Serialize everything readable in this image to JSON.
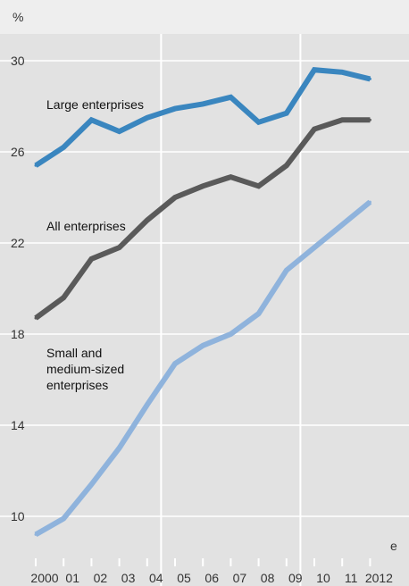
{
  "chart_data": {
    "type": "line",
    "ylabel": "%",
    "categories": [
      "2000",
      "01",
      "02",
      "03",
      "04",
      "05",
      "06",
      "07",
      "08",
      "09",
      "10",
      "11",
      "2012"
    ],
    "ylim": [
      9,
      31
    ],
    "yticks": [
      10,
      14,
      18,
      22,
      26,
      30
    ],
    "grid": {
      "horizontal": true,
      "vertical_at": [
        "04",
        "09"
      ]
    },
    "annotation": {
      "text": "e",
      "category": "2012"
    },
    "series": [
      {
        "name": "Large enterprises",
        "color": "#3a86bf",
        "values": [
          25.4,
          26.2,
          27.4,
          26.9,
          27.5,
          27.9,
          28.1,
          28.4,
          27.3,
          27.7,
          29.6,
          29.5,
          29.2
        ]
      },
      {
        "name": "All enterprises",
        "color": "#5a5a5a",
        "values": [
          18.7,
          19.6,
          21.3,
          21.8,
          23.0,
          24.0,
          24.5,
          24.9,
          24.5,
          25.4,
          27.0,
          27.4,
          27.4
        ]
      },
      {
        "name": "Small and medium-sized enterprises",
        "label_lines": [
          "Small and",
          "medium-sized",
          "enterprises"
        ],
        "color": "#8fb3dc",
        "values": [
          9.2,
          9.9,
          11.4,
          13.0,
          14.9,
          16.7,
          17.5,
          18.0,
          18.9,
          20.8,
          21.8,
          22.8,
          23.8
        ]
      }
    ]
  }
}
